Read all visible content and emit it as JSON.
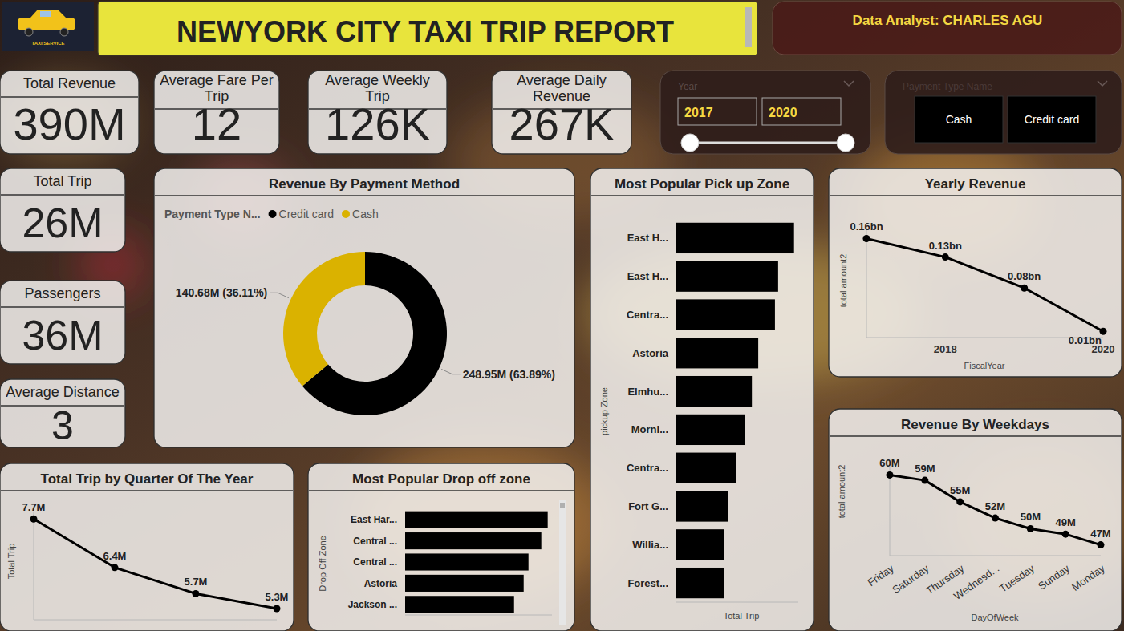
{
  "header": {
    "logo_text": "TAXI SERVICE",
    "title": "NEWYORK CITY TAXI TRIP REPORT",
    "analyst": "Data Analyst: CHARLES AGU"
  },
  "kpis": [
    {
      "label": "Total Revenue",
      "value": "390M"
    },
    {
      "label": "Average Fare Per Trip",
      "value": "12"
    },
    {
      "label": "Average Weekly Trip",
      "value": "126K"
    },
    {
      "label": "Average Daily Revenue",
      "value": "267K"
    },
    {
      "label": "Total Trip",
      "value": "26M"
    },
    {
      "label": "Passengers",
      "value": "36M"
    },
    {
      "label": "Average Distance",
      "value": "3"
    }
  ],
  "filters": {
    "year": {
      "label": "Year",
      "from": "2017",
      "to": "2020"
    },
    "payment": {
      "label": "Payment Type Name",
      "options": [
        "Cash",
        "Credit card"
      ]
    }
  },
  "chart_data": [
    {
      "type": "donut",
      "title": "Revenue By Payment Method",
      "legend_title": "Payment Type N...",
      "categories": [
        "Credit card",
        "Cash"
      ],
      "values": [
        248.95,
        140.68
      ],
      "value_labels": [
        "248.95M (63.89%)",
        "140.68M (36.11%)"
      ],
      "colors": [
        "#000000",
        "#dab200"
      ],
      "legend": "top-left",
      "data_labels": true
    },
    {
      "type": "bar",
      "orientation": "horizontal",
      "title": "Most Popular Pick up Zone",
      "x_label": "Total Trip",
      "y_label": "pickup Zone",
      "categories": [
        "East H...",
        "East H...",
        "Centra...",
        "Astoria",
        "Elmhu...",
        "Morni...",
        "Centra...",
        "Fort G...",
        "Willia...",
        "Forest..."
      ],
      "values": [
        1110000,
        960000,
        930000,
        772500,
        712500,
        645000,
        562500,
        487500,
        450000,
        450000
      ],
      "xlim": [
        0,
        1150000
      ],
      "color": "#000000",
      "tick_labels": "y"
    },
    {
      "type": "line",
      "title": "Yearly Revenue",
      "x_label": "FiscalYear",
      "y_label": "total amount2",
      "x": [
        2017,
        2018,
        2019,
        2020
      ],
      "values": [
        0.16,
        0.13,
        0.08,
        0.01
      ],
      "value_labels": [
        "0.16bn",
        "0.13bn",
        "0.08bn",
        "0.01bn"
      ],
      "xlim": [
        2017,
        2020
      ],
      "xticks": [
        2018,
        2020
      ],
      "ylim": [
        0,
        0.18
      ],
      "color": "#000000",
      "marker": "circle",
      "data_labels": true,
      "tick_labels": "x"
    },
    {
      "type": "bar",
      "orientation": "horizontal",
      "title": "Most Popular Drop off zone",
      "y_label": "Drop Off Zone",
      "categories": [
        "East Har...",
        "Central ...",
        "Central ...",
        "Astoria",
        "Jackson ..."
      ],
      "values": [
        1068000,
        1020000,
        924000,
        888000,
        816000
      ],
      "xlim": [
        0,
        1100000
      ],
      "color": "#000000",
      "tick_labels": "y"
    },
    {
      "type": "line",
      "title": "Total Trip by Quarter Of The Year",
      "y_label": "Total Trip",
      "categories": [
        null,
        null,
        null,
        null
      ],
      "values": [
        7.7,
        6.4,
        5.7,
        5.3
      ],
      "value_labels": [
        "7.7M",
        "6.4M",
        "5.7M",
        "5.3M"
      ],
      "ylim": [
        5,
        7.9
      ],
      "color": "#000000",
      "marker": "circle",
      "data_labels": true,
      "tick_labels": false
    },
    {
      "type": "line",
      "title": "Revenue By Weekdays",
      "x_label": "DayOfWeek",
      "y_label": "total amount2",
      "categories": [
        "Friday",
        "Saturday",
        "Thursday",
        "Wednesd...",
        "Tuesday",
        "Sunday",
        "Monday"
      ],
      "values": [
        60,
        59,
        55,
        52,
        50,
        49,
        47
      ],
      "value_labels": [
        "60M",
        "59M",
        "55M",
        "52M",
        "50M",
        "49M",
        "47M"
      ],
      "ylim": [
        45,
        62
      ],
      "color": "#000000",
      "marker": "circle",
      "data_labels": true,
      "tick_labels": "x"
    }
  ]
}
